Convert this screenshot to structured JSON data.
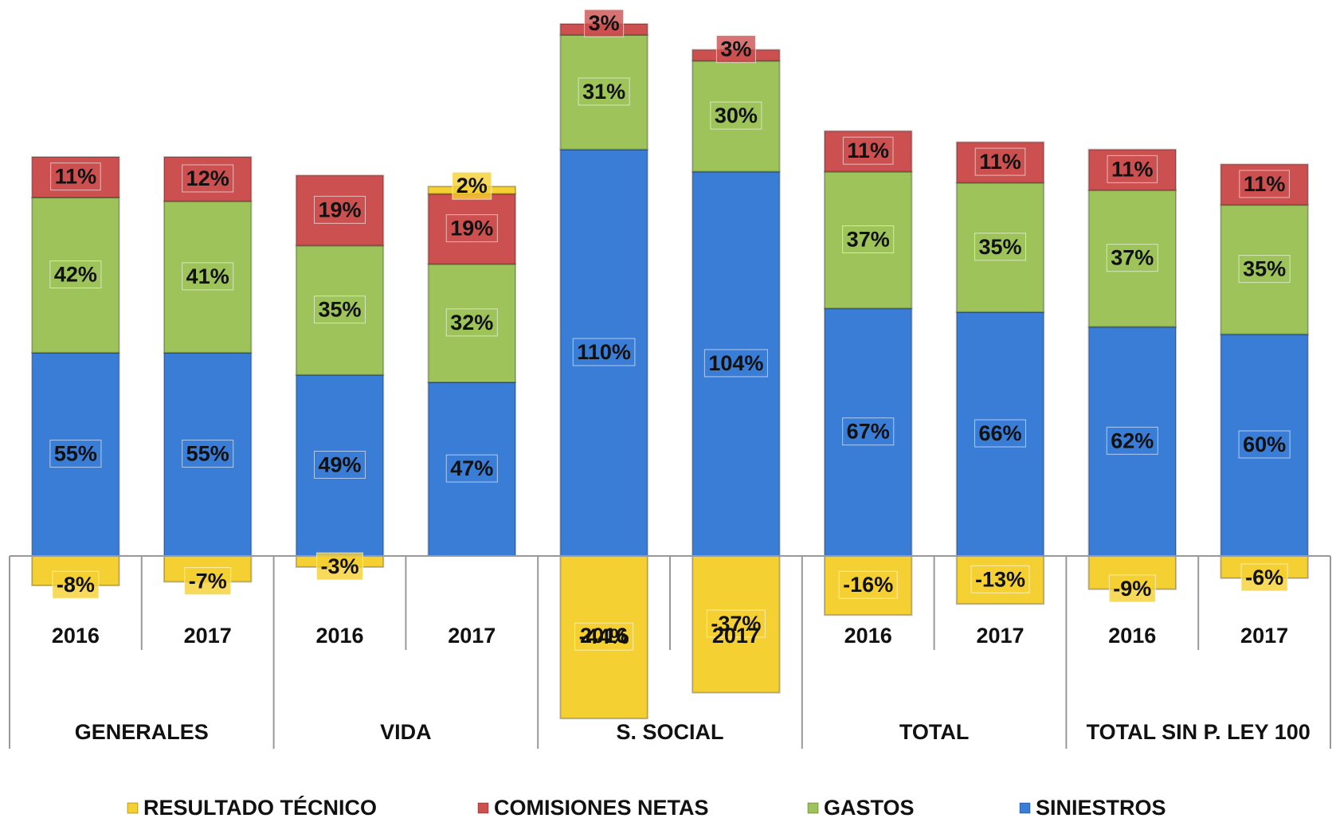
{
  "chart_data": {
    "type": "stacked_bar",
    "categories": [
      "2016",
      "2017",
      "2016",
      "2017",
      "2016",
      "2017",
      "2016",
      "2017",
      "2016",
      "2017"
    ],
    "groups": [
      "GENERALES",
      "VIDA",
      "S. SOCIAL",
      "TOTAL",
      "TOTAL SIN P. LEY 100"
    ],
    "series": [
      {
        "name": "RESULTADO TÉCNICO",
        "color": "#f5d033",
        "values": [
          -8,
          -7,
          -3,
          2,
          -44,
          -37,
          -16,
          -13,
          -9,
          -6
        ],
        "value_labels": [
          "-8%",
          "-7%",
          "-3%",
          "2%",
          "-44%",
          "-37%",
          "-16%",
          "-13%",
          "-9%",
          "-6%"
        ]
      },
      {
        "name": "COMISIONES NETAS",
        "color": "#cc5050",
        "values": [
          11,
          12,
          19,
          19,
          3,
          3,
          11,
          11,
          11,
          11
        ],
        "value_labels": [
          "11%",
          "12%",
          "19%",
          "19%",
          "3%",
          "3%",
          "11%",
          "11%",
          "11%",
          "11%"
        ]
      },
      {
        "name": "GASTOS",
        "color": "#9dc35a",
        "values": [
          42,
          41,
          35,
          32,
          31,
          30,
          37,
          35,
          37,
          35
        ],
        "value_labels": [
          "42%",
          "41%",
          "35%",
          "32%",
          "31%",
          "30%",
          "37%",
          "35%",
          "37%",
          "35%"
        ]
      },
      {
        "name": "SINIESTROS",
        "color": "#3a7dd6",
        "values": [
          55,
          55,
          49,
          47,
          110,
          104,
          67,
          66,
          62,
          60
        ],
        "value_labels": [
          "55%",
          "55%",
          "49%",
          "47%",
          "110%",
          "104%",
          "67%",
          "66%",
          "62%",
          "60%"
        ]
      }
    ]
  }
}
